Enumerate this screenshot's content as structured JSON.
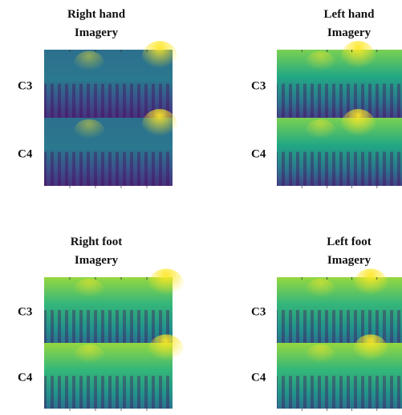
{
  "panels": [
    {
      "title": "Right hand",
      "subtitle": "Imagery",
      "rows": [
        "C3",
        "C4"
      ]
    },
    {
      "title": "Left hand",
      "subtitle": "Imagery",
      "rows": [
        "C3",
        "C4"
      ]
    },
    {
      "title": "Right foot",
      "subtitle": "Imagery",
      "rows": [
        "C3",
        "C4"
      ]
    },
    {
      "title": "Left foot",
      "subtitle": "Imagery",
      "rows": [
        "C3",
        "C4"
      ]
    }
  ]
}
